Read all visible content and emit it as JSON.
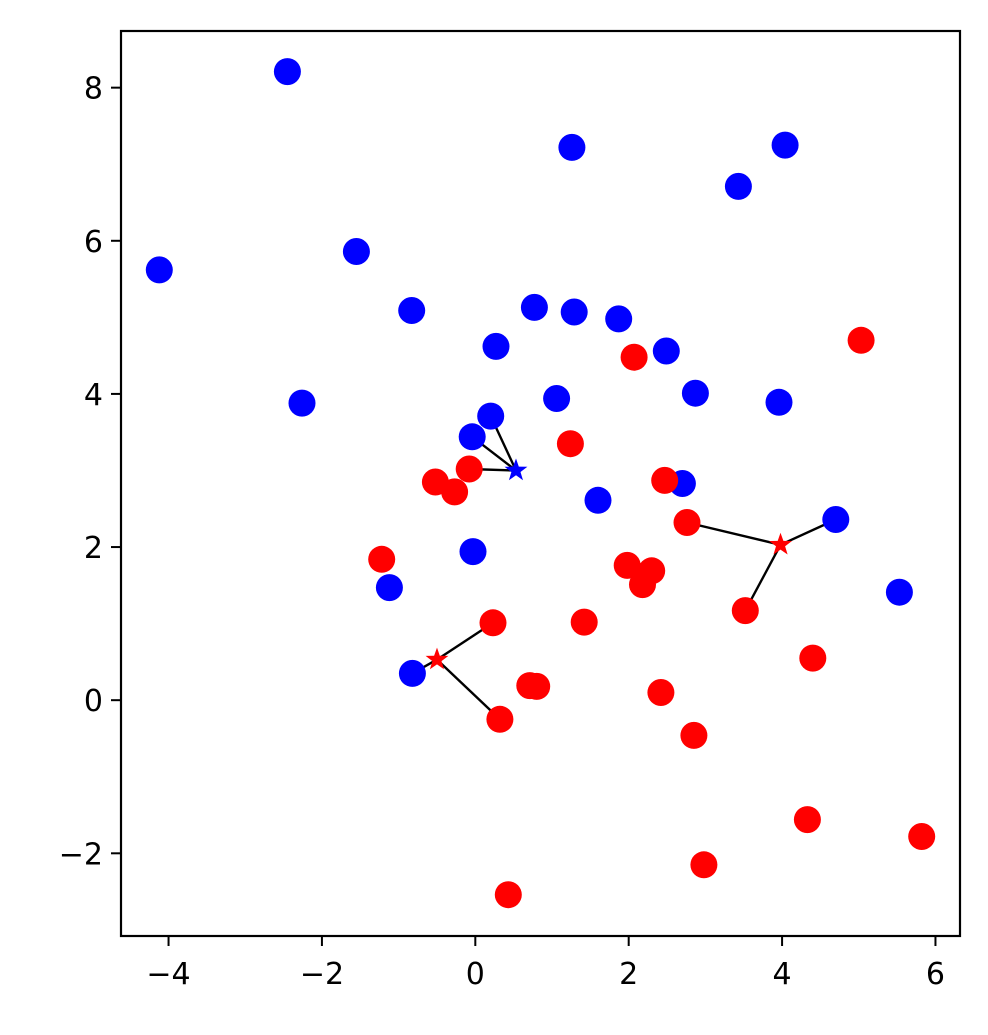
{
  "chart_data": {
    "type": "scatter",
    "title": "",
    "xlabel": "",
    "ylabel": "",
    "xlim": [
      -4.62,
      6.32
    ],
    "ylim": [
      -3.08,
      8.74
    ],
    "grid": false,
    "xticks": [
      -4,
      -2,
      0,
      2,
      4,
      6
    ],
    "yticks": [
      -2,
      0,
      2,
      4,
      6,
      8
    ],
    "xtick_labels": [
      "−4",
      "−2",
      "0",
      "2",
      "4",
      "6"
    ],
    "ytick_labels": [
      "−2",
      "0",
      "2",
      "4",
      "6",
      "8"
    ],
    "series": [
      {
        "color": "#0000ff",
        "marker": "circle",
        "points": [
          [
            -2.45,
            8.21
          ],
          [
            1.26,
            7.22
          ],
          [
            4.04,
            7.25
          ],
          [
            3.43,
            6.71
          ],
          [
            -4.12,
            5.62
          ],
          [
            -1.55,
            5.86
          ],
          [
            -0.83,
            5.09
          ],
          [
            0.77,
            5.13
          ],
          [
            1.29,
            5.07
          ],
          [
            1.87,
            4.98
          ],
          [
            0.27,
            4.62
          ],
          [
            2.49,
            4.56
          ],
          [
            -2.26,
            3.88
          ],
          [
            1.06,
            3.94
          ],
          [
            2.87,
            4.01
          ],
          [
            3.96,
            3.89
          ],
          [
            0.2,
            3.71
          ],
          [
            -0.04,
            3.44
          ],
          [
            1.6,
            2.61
          ],
          [
            2.7,
            2.83
          ],
          [
            4.7,
            2.36
          ],
          [
            -0.03,
            1.94
          ],
          [
            -1.12,
            1.47
          ],
          [
            5.53,
            1.41
          ],
          [
            -0.82,
            0.35
          ]
        ]
      },
      {
        "color": "#ff0000",
        "marker": "circle",
        "points": [
          [
            5.03,
            4.7
          ],
          [
            2.07,
            4.48
          ],
          [
            1.24,
            3.35
          ],
          [
            -0.08,
            3.02
          ],
          [
            2.47,
            2.87
          ],
          [
            -0.52,
            2.85
          ],
          [
            -0.27,
            2.72
          ],
          [
            2.76,
            2.32
          ],
          [
            -1.22,
            1.84
          ],
          [
            1.98,
            1.76
          ],
          [
            2.3,
            1.69
          ],
          [
            2.18,
            1.51
          ],
          [
            3.52,
            1.17
          ],
          [
            1.42,
            1.02
          ],
          [
            0.23,
            1.01
          ],
          [
            4.4,
            0.55
          ],
          [
            0.71,
            0.19
          ],
          [
            0.8,
            0.18
          ],
          [
            2.42,
            0.1
          ],
          [
            0.32,
            -0.25
          ],
          [
            2.85,
            -0.46
          ],
          [
            4.33,
            -1.56
          ],
          [
            5.82,
            -1.78
          ],
          [
            2.98,
            -2.15
          ],
          [
            0.43,
            -2.54
          ]
        ]
      }
    ],
    "centroids": [
      {
        "color": "#0000ff",
        "point": [
          0.53,
          3.0
        ],
        "links": [
          [
            0.2,
            3.71
          ],
          [
            -0.04,
            3.44
          ],
          [
            -0.08,
            3.02
          ]
        ]
      },
      {
        "color": "#ff0000",
        "point": [
          3.98,
          2.03
        ],
        "links": [
          [
            2.76,
            2.32
          ],
          [
            4.7,
            2.36
          ],
          [
            3.52,
            1.17
          ]
        ]
      },
      {
        "color": "#ff0000",
        "point": [
          -0.5,
          0.53
        ],
        "links": [
          [
            0.23,
            1.01
          ],
          [
            -0.82,
            0.35
          ],
          [
            0.32,
            -0.25
          ]
        ]
      }
    ]
  }
}
